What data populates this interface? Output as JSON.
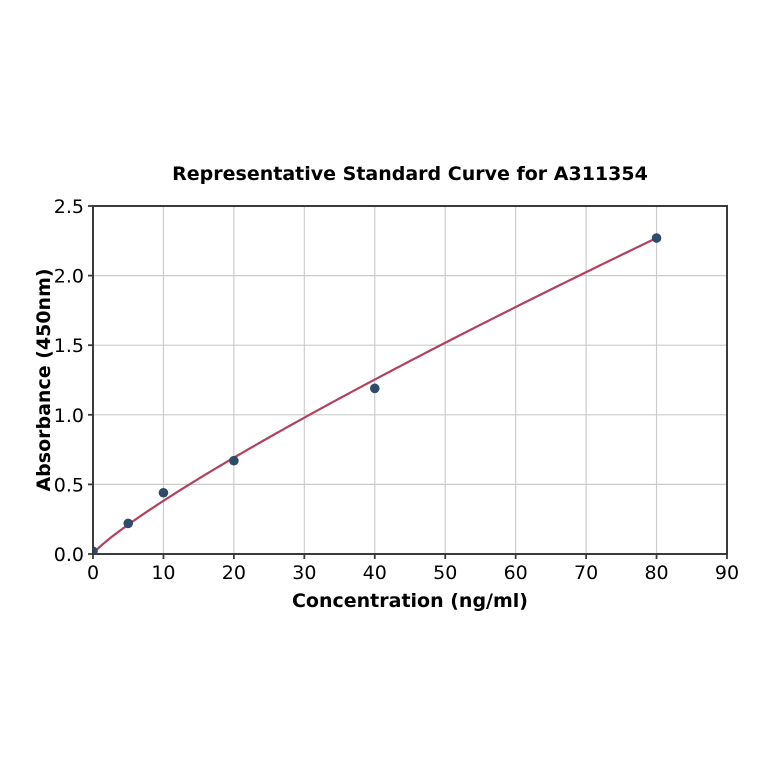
{
  "figure": {
    "background": "#ffffff"
  },
  "chart_data": {
    "type": "scatter",
    "title": "Representative Standard Curve for A311354",
    "xlabel": "Concentration (ng/ml)",
    "ylabel": "Absorbance (450nm)",
    "xlim": [
      0,
      90
    ],
    "ylim": [
      0,
      2.5
    ],
    "xticks": [
      "0",
      "10",
      "20",
      "30",
      "40",
      "50",
      "60",
      "70",
      "80",
      "90"
    ],
    "yticks": [
      "0.0",
      "0.5",
      "1.0",
      "1.5",
      "2.0",
      "2.5"
    ],
    "grid": true,
    "legend_position": "none",
    "points": [
      {
        "x": 0,
        "y": 0.02
      },
      {
        "x": 5,
        "y": 0.22
      },
      {
        "x": 10,
        "y": 0.44
      },
      {
        "x": 20,
        "y": 0.67
      },
      {
        "x": 40,
        "y": 1.19
      },
      {
        "x": 80,
        "y": 2.27
      }
    ],
    "fit_curve": {
      "type": "power",
      "a": 0.0531,
      "b": 0.857,
      "x_range": [
        0,
        80
      ]
    },
    "colors": {
      "curve": "#b2415f",
      "points": "#2e4b6b",
      "grid": "#cccccc",
      "spine": "#3a3a3a",
      "text": "#000000",
      "background": "#ffffff"
    }
  }
}
